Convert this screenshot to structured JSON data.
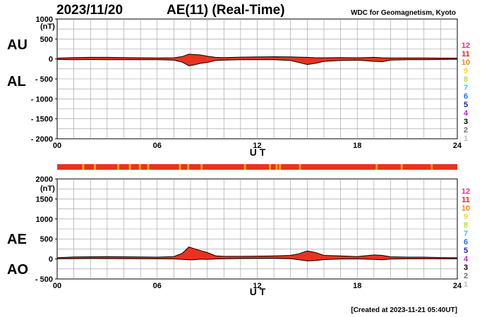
{
  "header": {
    "date": "2023/11/20",
    "title": "AE(11) (Real-Time)",
    "credit": "WDC for Geomagnetism, Kyoto"
  },
  "footer": {
    "created": "[Created at 2023-11-21 05:40UT]"
  },
  "colors": {
    "fill": "#e8331f",
    "outline": "#000000",
    "grid": "#999999",
    "station_bar_main": "#e8331f",
    "station_bar_alt": "#f0a020"
  },
  "legend": [
    {
      "label": "12",
      "color": "#e8318e"
    },
    {
      "label": "11",
      "color": "#e82020"
    },
    {
      "label": "10",
      "color": "#f08a10"
    },
    {
      "label": "9",
      "color": "#f4d820"
    },
    {
      "label": "8",
      "color": "#b8e040"
    },
    {
      "label": "7",
      "color": "#30d0e0"
    },
    {
      "label": "6",
      "color": "#1e6ee8"
    },
    {
      "label": "5",
      "color": "#2020b0"
    },
    {
      "label": "4",
      "color": "#c020d0"
    },
    {
      "label": "3",
      "color": "#000000"
    },
    {
      "label": "2",
      "color": "#707070"
    },
    {
      "label": "1",
      "color": "#c0c0c0"
    }
  ],
  "chart_data": [
    {
      "type": "area",
      "panel": "AU/AL",
      "series_labels": [
        "AU",
        "AL"
      ],
      "unit": "(nT)",
      "xlabel": "U T",
      "xlim": [
        0,
        24
      ],
      "x_ticks": [
        "00",
        "06",
        "12",
        "18",
        "24"
      ],
      "ylim": [
        -2000,
        1000
      ],
      "y_ticks": [
        "1000",
        "500",
        "0",
        "- 500",
        "- 1000",
        "- 1500",
        "- 2000"
      ],
      "grid": true,
      "x": [
        0,
        1,
        2,
        3,
        4,
        5,
        6,
        7,
        7.5,
        7.9,
        8.2,
        8.6,
        9,
        9.5,
        10,
        11,
        12,
        13,
        14,
        14.5,
        15,
        15.5,
        16,
        17,
        18,
        19,
        19.5,
        20,
        21,
        22,
        23,
        24
      ],
      "series": [
        {
          "name": "AU",
          "values": [
            20,
            35,
            40,
            40,
            35,
            30,
            25,
            30,
            60,
            120,
            110,
            100,
            70,
            40,
            35,
            45,
            50,
            55,
            50,
            45,
            40,
            30,
            30,
            35,
            30,
            40,
            30,
            25,
            25,
            25,
            20,
            20
          ]
        },
        {
          "name": "AL",
          "values": [
            -15,
            -20,
            -15,
            -20,
            -20,
            -20,
            -20,
            -30,
            -80,
            -170,
            -150,
            -110,
            -90,
            -40,
            -30,
            -20,
            -20,
            -20,
            -40,
            -90,
            -140,
            -110,
            -60,
            -40,
            -30,
            -60,
            -70,
            -30,
            -20,
            -20,
            -15,
            -10
          ]
        }
      ]
    },
    {
      "type": "area",
      "panel": "AE/AO",
      "series_labels": [
        "AE",
        "AO"
      ],
      "unit": "(nT)",
      "xlabel": "U T",
      "xlim": [
        0,
        24
      ],
      "x_ticks": [
        "00",
        "06",
        "12",
        "18",
        "24"
      ],
      "ylim": [
        -500,
        2000
      ],
      "y_ticks": [
        "2000",
        "1500",
        "1000",
        "500",
        "0",
        "- 500"
      ],
      "grid": true,
      "x": [
        0,
        1,
        2,
        3,
        4,
        5,
        6,
        7,
        7.5,
        7.9,
        8.2,
        8.6,
        9,
        9.5,
        10,
        11,
        12,
        13,
        14,
        14.5,
        15,
        15.5,
        16,
        17,
        18,
        19,
        19.5,
        20,
        21,
        22,
        23,
        24
      ],
      "series": [
        {
          "name": "AE",
          "values": [
            30,
            50,
            55,
            60,
            55,
            50,
            45,
            60,
            140,
            300,
            260,
            210,
            160,
            80,
            65,
            65,
            70,
            75,
            90,
            130,
            200,
            160,
            90,
            75,
            60,
            100,
            90,
            55,
            45,
            45,
            35,
            30
          ]
        },
        {
          "name": "AO",
          "values": [
            5,
            8,
            12,
            10,
            8,
            5,
            3,
            0,
            -10,
            -20,
            -20,
            -5,
            -10,
            0,
            3,
            12,
            15,
            18,
            5,
            -20,
            -50,
            -40,
            -15,
            -3,
            0,
            -10,
            -20,
            -3,
            3,
            3,
            3,
            5
          ]
        }
      ]
    }
  ]
}
